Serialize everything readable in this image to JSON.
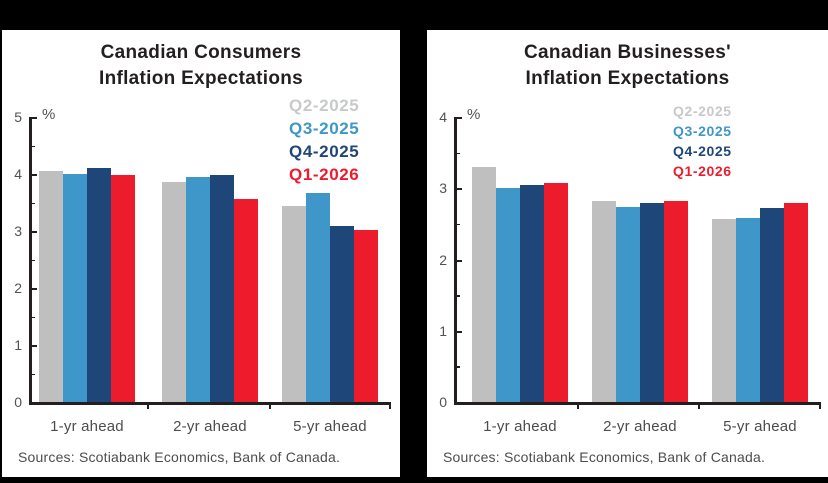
{
  "window": {
    "background_color": "#000000",
    "panel_color": "#ffffff"
  },
  "chart_data": [
    {
      "type": "bar",
      "title_line1": "Canadian Consumers",
      "title_line2": "Inflation Expectations",
      "unit_label": "%",
      "ylim": [
        0,
        5
      ],
      "ytick_step": 1,
      "grid": false,
      "legend_position": "top-right",
      "categories": [
        "1-yr ahead",
        "2-yr ahead",
        "5-yr ahead"
      ],
      "series": [
        {
          "name": "Q2-2025",
          "color": "#bfbfbf",
          "legend_color": "#c8c9ca",
          "values": [
            4.06,
            3.86,
            3.44
          ]
        },
        {
          "name": "Q3-2025",
          "color": "#3e96c9",
          "legend_color": "#3e96c9",
          "values": [
            4.0,
            3.95,
            3.67
          ]
        },
        {
          "name": "Q4-2025",
          "color": "#1f4678",
          "legend_color": "#1f4678",
          "values": [
            4.1,
            3.98,
            3.08
          ]
        },
        {
          "name": "Q1-2026",
          "color": "#ec1c2c",
          "legend_color": "#ec1c2c",
          "values": [
            3.98,
            3.57,
            3.01
          ]
        }
      ],
      "source": "Sources: Scotiabank Economics, Bank of Canada."
    },
    {
      "type": "bar",
      "title_line1": "Canadian Businesses'",
      "title_line2": "Inflation Expectations",
      "unit_label": "%",
      "ylim": [
        0,
        4
      ],
      "ytick_step": 1,
      "grid": false,
      "legend_position": "top-right",
      "categories": [
        "1-yr ahead",
        "2-yr ahead",
        "5-yr ahead"
      ],
      "series": [
        {
          "name": "Q2-2025",
          "color": "#bfbfbf",
          "legend_color": "#c8c9ca",
          "values": [
            3.3,
            2.82,
            2.57
          ]
        },
        {
          "name": "Q3-2025",
          "color": "#3e96c9",
          "legend_color": "#3e96c9",
          "values": [
            3.0,
            2.73,
            2.58
          ]
        },
        {
          "name": "Q4-2025",
          "color": "#1f4678",
          "legend_color": "#1f4678",
          "values": [
            3.04,
            2.79,
            2.72
          ]
        },
        {
          "name": "Q1-2026",
          "color": "#ec1c2c",
          "legend_color": "#ec1c2c",
          "values": [
            3.07,
            2.82,
            2.79
          ]
        }
      ],
      "source": "Sources: Scotiabank Economics, Bank of Canada."
    }
  ]
}
